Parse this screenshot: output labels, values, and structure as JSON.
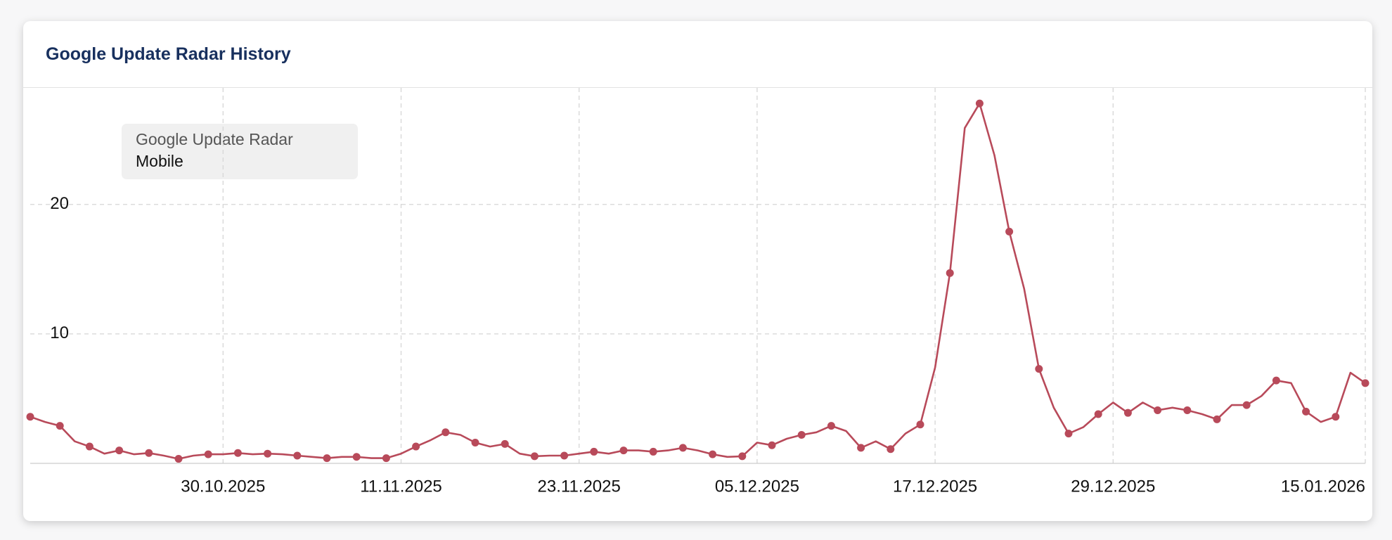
{
  "chart_data": {
    "type": "line",
    "title": "Google Update Radar History",
    "legend_title": "Google Update Radar",
    "categories": [
      null,
      null,
      null,
      null,
      null,
      null,
      null,
      null,
      null,
      null,
      null,
      null,
      null,
      "30.10.2025",
      null,
      null,
      null,
      null,
      null,
      null,
      null,
      null,
      null,
      null,
      null,
      "11.11.2025",
      null,
      null,
      null,
      null,
      null,
      null,
      null,
      null,
      null,
      null,
      null,
      "23.11.2025",
      null,
      null,
      null,
      null,
      null,
      null,
      null,
      null,
      null,
      null,
      null,
      "05.12.2025",
      null,
      null,
      null,
      null,
      null,
      null,
      null,
      null,
      null,
      null,
      null,
      "17.12.2025",
      null,
      null,
      null,
      null,
      null,
      null,
      null,
      null,
      null,
      null,
      null,
      "29.12.2025",
      null,
      null,
      null,
      null,
      null,
      null,
      null,
      null,
      null,
      null,
      null,
      null,
      null,
      null,
      null,
      null,
      "15.01.2026"
    ],
    "series": [
      {
        "name": "Mobile",
        "color": "#b84a5a",
        "values": [
          3.6,
          3.2,
          2.9,
          1.7,
          1.3,
          0.75,
          1.0,
          0.7,
          0.8,
          0.6,
          0.35,
          0.6,
          0.7,
          0.7,
          0.8,
          0.7,
          0.75,
          0.7,
          0.6,
          0.5,
          0.4,
          0.5,
          0.5,
          0.4,
          0.4,
          0.75,
          1.3,
          1.8,
          2.4,
          2.2,
          1.6,
          1.3,
          1.5,
          0.75,
          0.55,
          0.6,
          0.6,
          0.75,
          0.9,
          0.75,
          1.0,
          1.0,
          0.9,
          1.0,
          1.2,
          1.0,
          0.7,
          0.5,
          0.55,
          1.6,
          1.4,
          1.9,
          2.2,
          2.4,
          2.9,
          2.5,
          1.2,
          1.7,
          1.1,
          2.3,
          3.0,
          7.4,
          14.7,
          25.9,
          27.8,
          23.8,
          17.9,
          13.5,
          7.3,
          4.3,
          2.3,
          2.8,
          3.8,
          4.7,
          3.9,
          4.7,
          4.1,
          4.3,
          4.1,
          3.8,
          3.4,
          4.5,
          4.5,
          5.2,
          6.4,
          6.2,
          4.0,
          3.2,
          3.6,
          7.0,
          6.2
        ]
      }
    ],
    "ylim": [
      0,
      29
    ],
    "yticks": [
      10,
      20
    ],
    "grid": true
  }
}
